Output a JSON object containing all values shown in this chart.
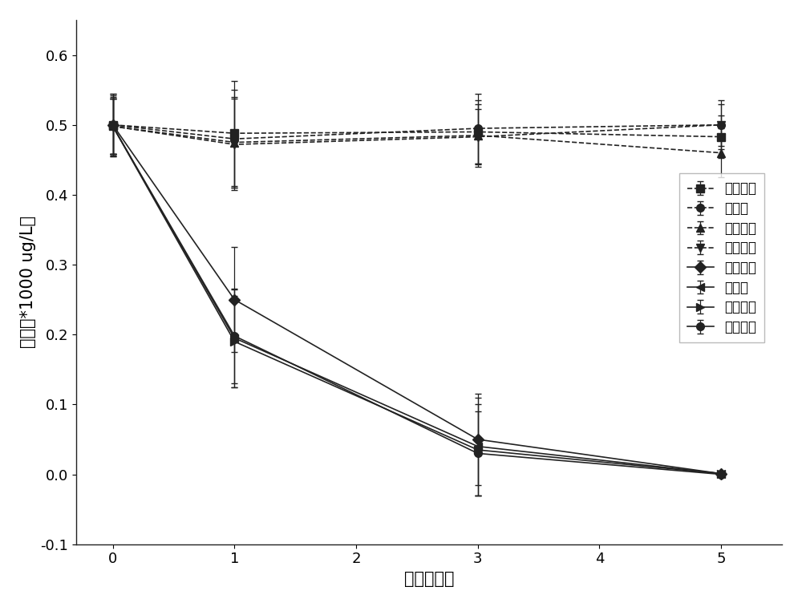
{
  "x": [
    0,
    1,
    3,
    5
  ],
  "dashed_series": [
    {
      "label": "氧四环素",
      "marker": "s",
      "y": [
        0.5,
        0.488,
        0.49,
        0.483
      ],
      "yerr": [
        0.045,
        0.075,
        0.045,
        0.03
      ]
    },
    {
      "label": "四环素",
      "marker": "o",
      "y": [
        0.5,
        0.48,
        0.495,
        0.5
      ],
      "yerr": [
        0.045,
        0.07,
        0.05,
        0.035
      ]
    },
    {
      "label": "氯四环素",
      "marker": "^",
      "y": [
        0.498,
        0.475,
        0.485,
        0.46
      ],
      "yerr": [
        0.04,
        0.065,
        0.045,
        0.035
      ]
    },
    {
      "label": "强力霉素",
      "marker": "v",
      "y": [
        0.498,
        0.472,
        0.483,
        0.5
      ],
      "yerr": [
        0.042,
        0.065,
        0.04,
        0.03
      ]
    }
  ],
  "solid_series": [
    {
      "label": "氧四环素",
      "marker": "D",
      "y": [
        0.5,
        0.25,
        0.05,
        0.001
      ],
      "yerr": [
        0.042,
        0.075,
        0.065,
        0.002
      ]
    },
    {
      "label": "四环素",
      "marker": "<",
      "y": [
        0.498,
        0.195,
        0.04,
        0.001
      ],
      "yerr": [
        0.04,
        0.07,
        0.07,
        0.002
      ]
    },
    {
      "label": "氯四环素",
      "marker": ">",
      "y": [
        0.498,
        0.19,
        0.035,
        0.001
      ],
      "yerr": [
        0.04,
        0.065,
        0.065,
        0.002
      ]
    },
    {
      "label": "强力霉素",
      "marker": "o",
      "y": [
        0.498,
        0.198,
        0.03,
        0.0
      ],
      "yerr": [
        0.04,
        0.068,
        0.06,
        0.002
      ]
    }
  ],
  "xlabel": "时间（天）",
  "ylabel": "浓度（*1000 ug/L）",
  "xlim": [
    -0.3,
    5.5
  ],
  "ylim": [
    -0.1,
    0.65
  ],
  "xticks": [
    0,
    1,
    2,
    3,
    4,
    5
  ],
  "yticks": [
    -0.1,
    0.0,
    0.1,
    0.2,
    0.3,
    0.4,
    0.5,
    0.6
  ],
  "line_color": "#222222",
  "bg_color": "#ffffff",
  "fontsize_label": 15,
  "fontsize_tick": 13,
  "fontsize_legend": 12
}
